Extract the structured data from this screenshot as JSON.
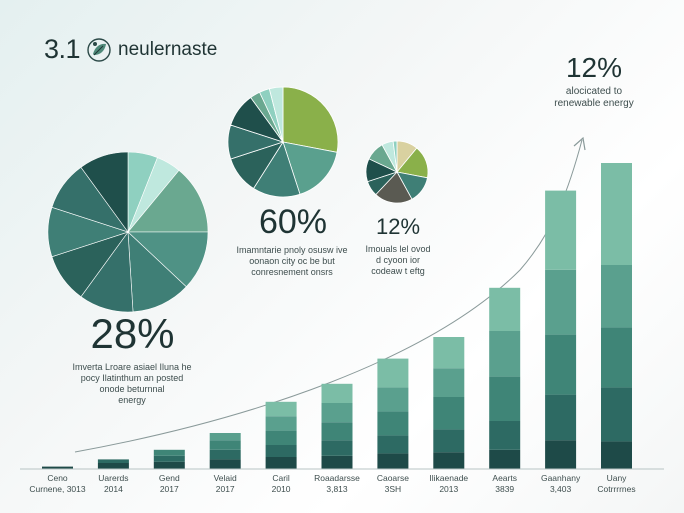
{
  "header": {
    "title_number": "3.1",
    "title_text": "neulernaste"
  },
  "stats": {
    "top_right": {
      "value": "12%",
      "note_line1": "alocicated to",
      "note_line2": "renewable energy"
    },
    "left_pie": {
      "value": "28%",
      "note_line1": "Imverta Lroare asiael Iluna he",
      "note_line2": "pocy Ilatinthum an posted",
      "note_line3": "onode beturnnal",
      "note_line4": "energy"
    },
    "mid_pie": {
      "value": "60%",
      "note_line1": "Imamntarie pnoly osusw ive",
      "note_line2": "oonaon city oc be but",
      "note_line3": "conresnement onsrs"
    },
    "small_pie": {
      "value": "12%",
      "note_line1": "Imouals lel ovod",
      "note_line2": "d cyoon ior",
      "note_line3": "codeaw t eftg"
    }
  },
  "colors": {
    "bar_shades": [
      "#1e4a48",
      "#2d6a63",
      "#3f8577",
      "#5aa08e",
      "#7bbda6"
    ],
    "pie_palette": [
      "#1f4f4b",
      "#2b625b",
      "#35706a",
      "#3f7f76",
      "#4f9285",
      "#6aa890",
      "#8fd0c0",
      "#bfe8de",
      "#8ab04a",
      "#d9d1a0",
      "#5a5a52"
    ],
    "trend_line": "#8a9a9a"
  },
  "chart_data": [
    {
      "type": "bar",
      "stacked": true,
      "categories": [
        "Ceno",
        "Uarerds",
        "Gend",
        "Velaid",
        "Caril",
        "Roaadarsse",
        "Caoarse",
        "Ilikaenade",
        "Aearts",
        "Gaanhany",
        "Uany"
      ],
      "category_sublabels": [
        "Curnene, 3013",
        "2014",
        "2017",
        "2017",
        "2010",
        "3,813",
        "3SH",
        "2013",
        "3839",
        "3,403",
        "Cotrrrrnes"
      ],
      "series": [
        {
          "values": [
            2,
            5,
            6,
            8,
            10,
            11,
            13,
            14,
            16,
            24,
            23
          ]
        },
        {
          "values": [
            0,
            3,
            5,
            8,
            10,
            13,
            15,
            19,
            24,
            38,
            45
          ]
        },
        {
          "values": [
            0,
            0,
            5,
            8,
            12,
            15,
            20,
            27,
            37,
            50,
            50
          ]
        },
        {
          "values": [
            0,
            0,
            0,
            6,
            12,
            16,
            20,
            24,
            38,
            54,
            52
          ]
        },
        {
          "values": [
            0,
            0,
            0,
            0,
            12,
            16,
            24,
            26,
            36,
            66,
            85
          ]
        }
      ],
      "ylim": [
        0,
        270
      ],
      "trend_arrow": true
    },
    {
      "type": "pie",
      "slices": [
        {
          "value": 6,
          "color": "#8fd0c0"
        },
        {
          "value": 5,
          "color": "#bfe8de"
        },
        {
          "value": 14,
          "color": "#6aa890"
        },
        {
          "value": 12,
          "color": "#4f9285"
        },
        {
          "value": 12,
          "color": "#3f7f76"
        },
        {
          "value": 11,
          "color": "#35706a"
        },
        {
          "value": 10,
          "color": "#2b625b"
        },
        {
          "value": 10,
          "color": "#3f7f76"
        },
        {
          "value": 10,
          "color": "#35706a"
        },
        {
          "value": 10,
          "color": "#1f4f4b"
        }
      ]
    },
    {
      "type": "pie",
      "slices": [
        {
          "value": 28,
          "color": "#8ab04a"
        },
        {
          "value": 17,
          "color": "#5aa08e"
        },
        {
          "value": 14,
          "color": "#3f7f76"
        },
        {
          "value": 11,
          "color": "#2b625b"
        },
        {
          "value": 10,
          "color": "#35706a"
        },
        {
          "value": 10,
          "color": "#1f4f4b"
        },
        {
          "value": 3,
          "color": "#6aa890"
        },
        {
          "value": 3,
          "color": "#8fd0c0"
        },
        {
          "value": 4,
          "color": "#bfe8de"
        }
      ]
    },
    {
      "type": "pie",
      "slices": [
        {
          "value": 11,
          "color": "#d9d1a0"
        },
        {
          "value": 17,
          "color": "#8ab04a"
        },
        {
          "value": 14,
          "color": "#3f7f76"
        },
        {
          "value": 20,
          "color": "#5a5a52"
        },
        {
          "value": 8,
          "color": "#2b625b"
        },
        {
          "value": 12,
          "color": "#1f4f4b"
        },
        {
          "value": 10,
          "color": "#6aa890"
        },
        {
          "value": 6,
          "color": "#bfe8de"
        },
        {
          "value": 2,
          "color": "#8fd0c0"
        }
      ]
    }
  ]
}
